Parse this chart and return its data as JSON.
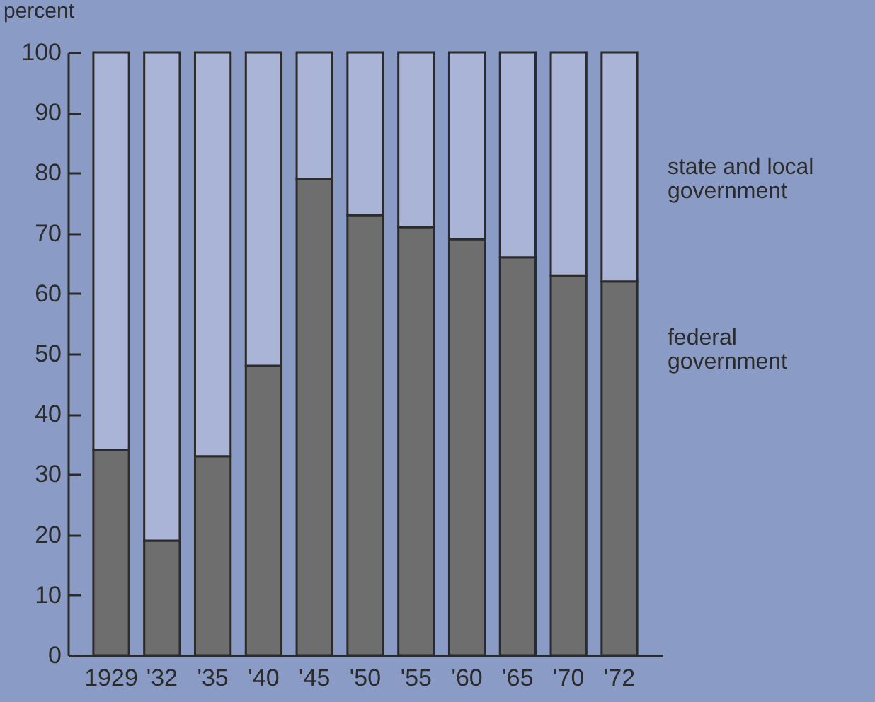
{
  "chart_data": {
    "type": "bar",
    "stacked": true,
    "ylabel": "percent",
    "categories": [
      "1929",
      "'32",
      "'35",
      "'40",
      "'45",
      "'50",
      "'55",
      "'60",
      "'65",
      "'70",
      "'72"
    ],
    "series": [
      {
        "name": "federal government",
        "color": "#6f6e6e",
        "values": [
          34,
          19,
          33,
          48,
          79,
          73,
          71,
          69,
          66,
          63,
          62
        ]
      },
      {
        "name": "state and local government",
        "color": "#aab4d6",
        "values": [
          66,
          81,
          67,
          52,
          21,
          27,
          29,
          31,
          34,
          37,
          38
        ]
      }
    ],
    "ylim": [
      0,
      100
    ],
    "yticks": [
      0,
      10,
      20,
      30,
      40,
      50,
      60,
      70,
      80,
      90,
      100
    ],
    "grid": false,
    "legend": false
  }
}
